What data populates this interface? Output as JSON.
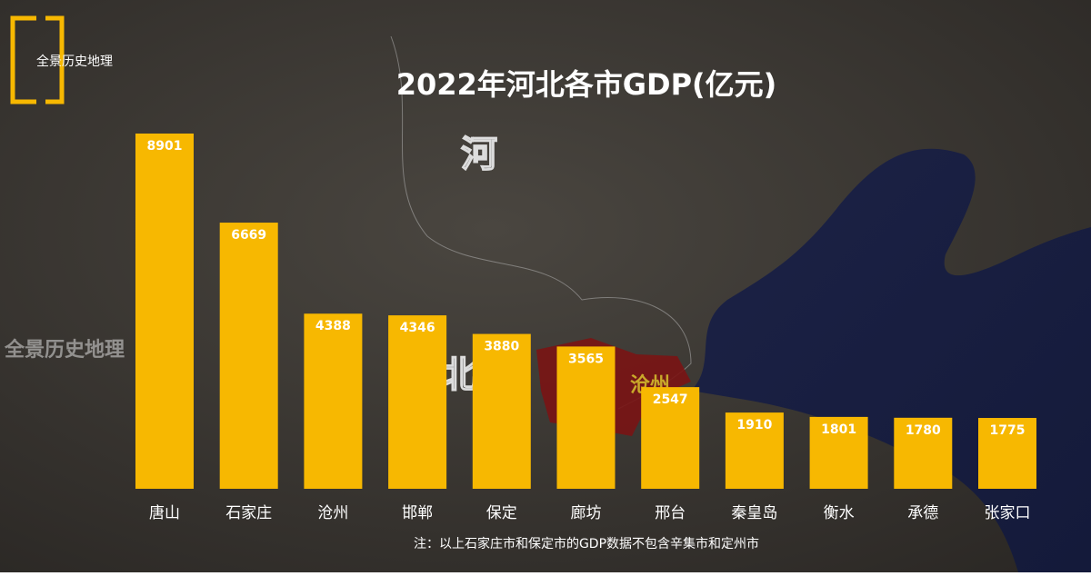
{
  "chart_data": {
    "type": "bar",
    "title": "2022年河北各市GDP(亿元)",
    "categories": [
      "唐山",
      "石家庄",
      "沧州",
      "邯郸",
      "保定",
      "廊坊",
      "邢台",
      "秦皇岛",
      "衡水",
      "承德",
      "张家口"
    ],
    "values": [
      8901,
      6669,
      4388,
      4346,
      3880,
      3565,
      2547,
      1910,
      1801,
      1780,
      1775
    ],
    "color": "#f7b801",
    "note": "注：以上石家庄市和保定市的GDP数据不包含辛集市和定州市",
    "logo": "全景历史地理",
    "watermark": "全景历史地理",
    "map_labels": [
      "河",
      "北",
      "沧州"
    ]
  }
}
